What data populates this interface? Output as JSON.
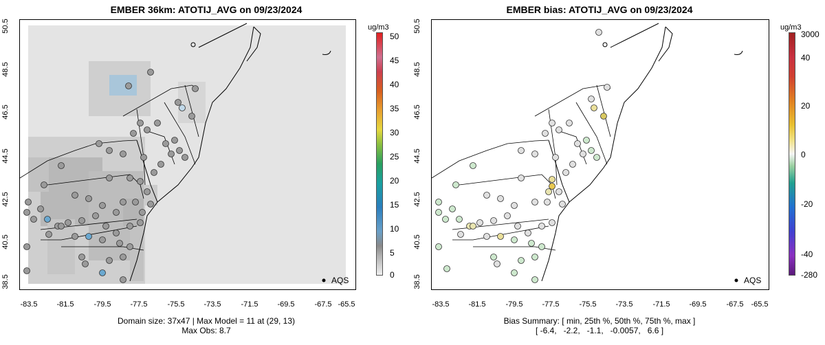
{
  "panel_left": {
    "title": "EMBER 36km: ATOTIJ_AVG on 09/23/2024",
    "x_ticks": [
      "-83.5",
      "-81.5",
      "-79.5",
      "-77.5",
      "-75.5",
      "-73.5",
      "-71.5",
      "-69.5",
      "-67.5",
      "-65.5"
    ],
    "y_ticks": [
      "50.5",
      "48.5",
      "46.5",
      "44.5",
      "42.5",
      "40.5",
      "38.5"
    ],
    "footer_line1": "Domain size: 37x47 | Max Model = 11 at (29, 13)",
    "footer_line2": "Max Obs: 8.7",
    "legend_label": "AQS",
    "colorbar": {
      "unit": "ug/m3",
      "labels": [
        "50",
        "45",
        "40",
        "35",
        "30",
        "25",
        "20",
        "15",
        "10",
        "5",
        "0"
      ]
    }
  },
  "panel_right": {
    "title": "EMBER bias: ATOTIJ_AVG on 09/23/2024",
    "x_ticks": [
      "-83.5",
      "-81.5",
      "-79.5",
      "-77.5",
      "-75.5",
      "-73.5",
      "-71.5",
      "-69.5",
      "-67.5",
      "-65.5"
    ],
    "y_ticks": [
      "50.5",
      "48.5",
      "46.5",
      "44.5",
      "42.5",
      "40.5",
      "38.5"
    ],
    "footer_line1": "Bias Summary: [ min, 25th %, 50th %, 75th %, max ]",
    "footer_line2": "[ -6.4,   -2.2,   -1.1,   -0.0057,   6.6 ]",
    "legend_label": "AQS",
    "colorbar": {
      "unit": "ug/m3",
      "labels": [
        "3000",
        "40",
        "20",
        "0",
        "-20",
        "-40",
        "-280"
      ]
    }
  },
  "colors": {
    "map_gray": "#e6e6e6",
    "obs_gray": "#9a9a9a",
    "boundary": "#000000"
  }
}
